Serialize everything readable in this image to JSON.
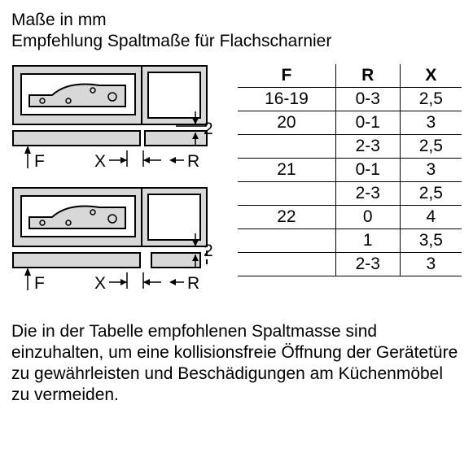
{
  "header": {
    "line1": "Maße in mm",
    "line2": "Empfehlung Spaltmaße für Flachscharnier"
  },
  "diagram": {
    "labels": {
      "F": "F",
      "X": "X",
      "R": "R",
      "gap": "2"
    },
    "colors": {
      "fill_light": "#d8d8d8",
      "stroke": "#000000",
      "bg": "#ffffff"
    }
  },
  "table": {
    "headers": [
      "F",
      "R",
      "X"
    ],
    "rows": [
      {
        "F": "16-19",
        "R": "0-3",
        "X": "2,5"
      },
      {
        "F": "20",
        "R": "0-1",
        "X": "3"
      },
      {
        "F": "",
        "R": "2-3",
        "X": "2,5"
      },
      {
        "F": "21",
        "R": "0-1",
        "X": "3"
      },
      {
        "F": "",
        "R": "2-3",
        "X": "2,5"
      },
      {
        "F": "22",
        "R": "0",
        "X": "4"
      },
      {
        "F": "",
        "R": "1",
        "X": "3,5"
      },
      {
        "F": "",
        "R": "2-3",
        "X": "3"
      }
    ]
  },
  "footer": {
    "text": "Die in der Tabelle empfohlenen Spaltmasse sind einzuhalten, um eine kollisionsfreie Öffnung der Gerätetüre zu gewährleisten und Beschädigungen am Küchenmöbel zu vermeiden."
  }
}
